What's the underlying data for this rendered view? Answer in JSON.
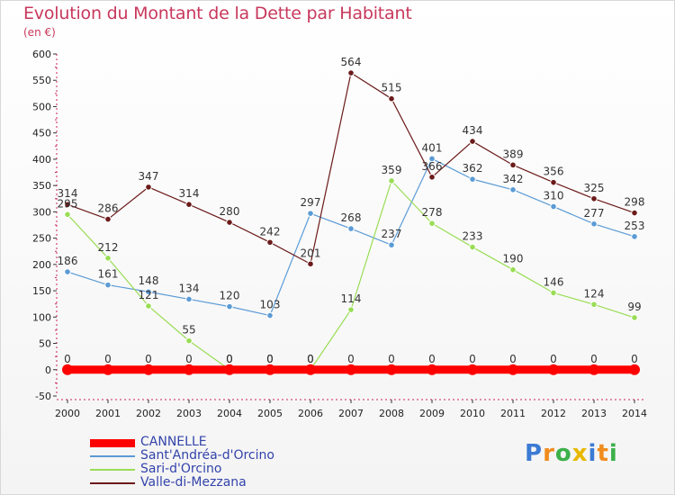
{
  "chart_data": {
    "type": "line",
    "title": "Evolution du Montant de la Dette par Habitant",
    "subtitle": "(en €)",
    "x": [
      "2000",
      "2001",
      "2002",
      "2003",
      "2004",
      "2005",
      "2006",
      "2007",
      "2008",
      "2009",
      "2010",
      "2011",
      "2012",
      "2013",
      "2014"
    ],
    "ylim": [
      -50,
      600
    ],
    "yticks": [
      -50,
      0,
      50,
      100,
      150,
      200,
      250,
      300,
      350,
      400,
      450,
      500,
      550,
      600
    ],
    "grid": false,
    "legend_position": "bottom-left",
    "series": [
      {
        "name": "CANNELLE",
        "color": "#ff0000",
        "values": [
          0,
          0,
          0,
          0,
          0,
          0,
          0,
          0,
          0,
          0,
          0,
          0,
          0,
          0,
          0
        ]
      },
      {
        "name": "Sant'Andréa-d'Orcino",
        "color": "#5b9bd5",
        "values": [
          186,
          161,
          148,
          134,
          120,
          103,
          297,
          268,
          237,
          401,
          362,
          342,
          310,
          277,
          253
        ]
      },
      {
        "name": "Sari-d'Orcino",
        "color": "#99dd55",
        "values": [
          295,
          212,
          121,
          55,
          0,
          0,
          0,
          114,
          359,
          278,
          233,
          190,
          146,
          124,
          99
        ]
      },
      {
        "name": "Valle-di-Mezzana",
        "color": "#6b1a1a",
        "values": [
          314,
          286,
          347,
          314,
          280,
          242,
          201,
          564,
          515,
          366,
          434,
          389,
          356,
          325,
          298
        ]
      }
    ]
  },
  "logo": {
    "text": [
      "P",
      "r",
      "o",
      "x",
      "i",
      "t",
      "i"
    ],
    "colors": [
      "#3c7bd4",
      "#f08c1e",
      "#3cb04a",
      "#e8b800",
      "#3c7bd4",
      "#f08c1e",
      "#3cb04a"
    ]
  }
}
